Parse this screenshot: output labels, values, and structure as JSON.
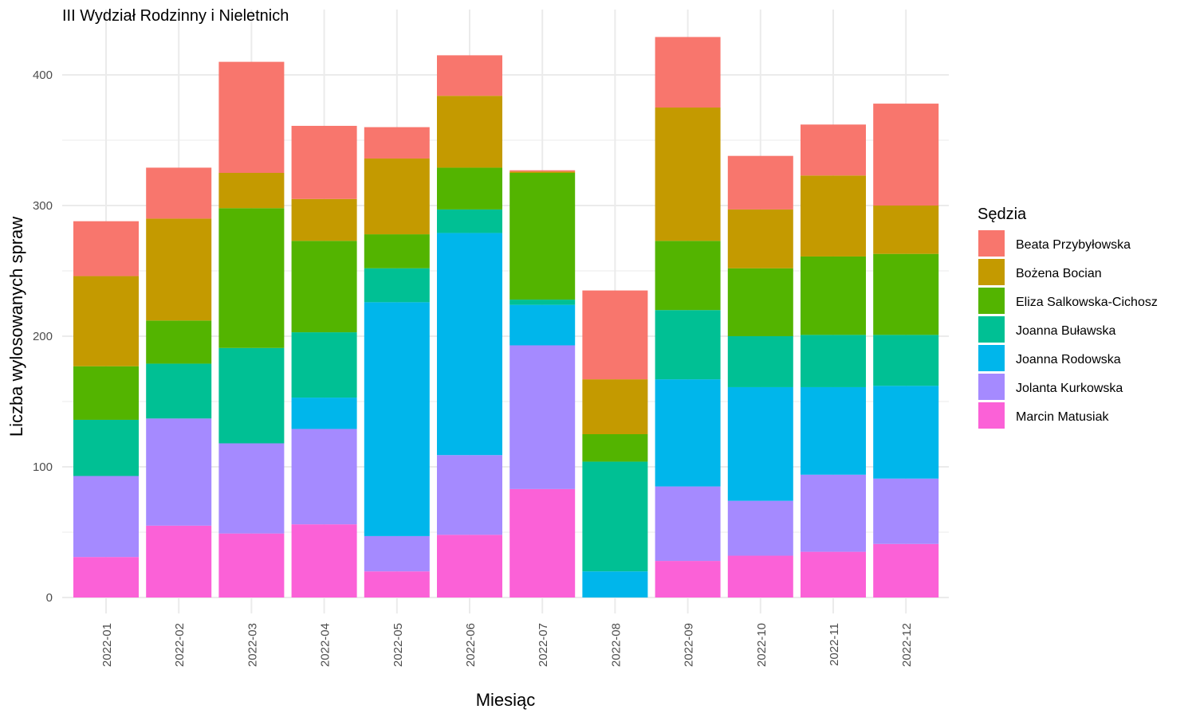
{
  "chart_data": {
    "type": "bar",
    "stacked": true,
    "title": "III Wydział Rodzinny i Nieletnich",
    "xlabel": "Miesiąc",
    "ylabel": "Liczba wylosowanych spraw",
    "ylim": [
      0,
      435
    ],
    "y_ticks": [
      0,
      100,
      200,
      300,
      400
    ],
    "grid": true,
    "legend": {
      "title": "Sędzia",
      "position": "right"
    },
    "categories": [
      "2022-01",
      "2022-02",
      "2022-03",
      "2022-04",
      "2022-05",
      "2022-06",
      "2022-07",
      "2022-08",
      "2022-09",
      "2022-10",
      "2022-11",
      "2022-12"
    ],
    "series": [
      {
        "name": "Beata Przybyłowska",
        "color": "#F8766D",
        "values": [
          42,
          39,
          85,
          56,
          24,
          31,
          1,
          68,
          54,
          41,
          39,
          78
        ]
      },
      {
        "name": "Bożena Bocian",
        "color": "#C49A00",
        "values": [
          69,
          78,
          27,
          32,
          58,
          55,
          1,
          42,
          102,
          45,
          62,
          37
        ]
      },
      {
        "name": "Eliza Salkowska-Cichosz",
        "color": "#53B400",
        "values": [
          41,
          33,
          107,
          70,
          26,
          32,
          97,
          21,
          53,
          52,
          60,
          62
        ]
      },
      {
        "name": "Joanna Buławska",
        "color": "#00C094",
        "values": [
          43,
          42,
          73,
          50,
          26,
          18,
          4,
          84,
          53,
          39,
          40,
          39
        ]
      },
      {
        "name": "Joanna Rodowska",
        "color": "#00B6EB",
        "values": [
          0,
          0,
          0,
          24,
          179,
          170,
          31,
          20,
          82,
          87,
          67,
          71
        ]
      },
      {
        "name": "Jolanta Kurkowska",
        "color": "#A58AFF",
        "values": [
          62,
          82,
          69,
          73,
          27,
          61,
          110,
          0,
          57,
          42,
          59,
          50
        ]
      },
      {
        "name": "Marcin Matusiak",
        "color": "#FB61D7",
        "values": [
          31,
          55,
          49,
          56,
          20,
          48,
          83,
          0,
          28,
          32,
          35,
          41
        ]
      }
    ]
  }
}
